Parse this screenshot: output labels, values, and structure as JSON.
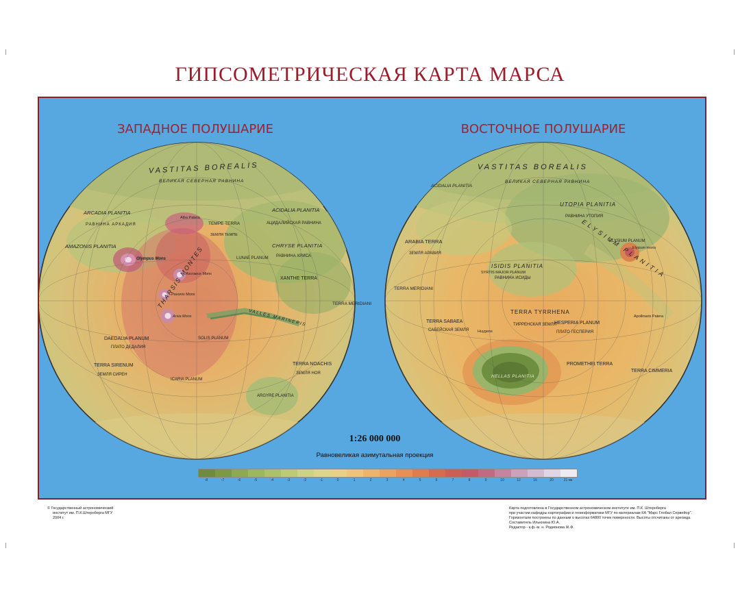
{
  "title": "ГИПСОМЕТРИЧЕСКАЯ  КАРТА  МАРСА",
  "hemispheres": {
    "west": {
      "title": "ЗАПАДНОЕ ПОЛУШАРИЕ",
      "labels": [
        {
          "text": "VASTITAS BOREALIS"
        },
        {
          "text": "ВЕЛИКАЯ СЕВЕРНАЯ РАВНИНА"
        },
        {
          "text": "ARCADIA PLANITIA"
        },
        {
          "text": "РАВНИНА АРКАДИЯ"
        },
        {
          "text": "AMAZONIS PLANITIA"
        },
        {
          "text": "ACIDALIA PLANITIA"
        },
        {
          "text": "АЦИДАЛИЙСКАЯ РАВНИНА"
        },
        {
          "text": "TEMPE TERRA"
        },
        {
          "text": "ЗЕМЛЯ ТЕМПЕ"
        },
        {
          "text": "CHRYSE PLANITIA"
        },
        {
          "text": "РАВНИНА ХРИСА"
        },
        {
          "text": "Olympus Mons"
        },
        {
          "text": "THARSIS MONTES"
        },
        {
          "text": "Ascraeus Mons"
        },
        {
          "text": "Pavonis Mons"
        },
        {
          "text": "Arsia Mons"
        },
        {
          "text": "Alba Patera"
        },
        {
          "text": "LUNAE PLANUM"
        },
        {
          "text": "XANTHE TERRA"
        },
        {
          "text": "TERRA MERIDIANI"
        },
        {
          "text": "DAEDALIA PLANUM"
        },
        {
          "text": "ПЛАТО ДЕДАЛИЯ"
        },
        {
          "text": "SOLIS PLANUM"
        },
        {
          "text": "TERRA SIRENUM"
        },
        {
          "text": "ЗЕМЛЯ СИРЕН"
        },
        {
          "text": "ICARIA PLANUM"
        },
        {
          "text": "TERRA NOACHIS"
        },
        {
          "text": "ЗЕМЛЯ НОЯ"
        },
        {
          "text": "ARGYRE PLANITIA"
        },
        {
          "text": "VALLES MARINERIS"
        }
      ]
    },
    "east": {
      "title": "ВОСТОЧНОЕ ПОЛУШАРИЕ",
      "labels": [
        {
          "text": "VASTITAS BOREALIS"
        },
        {
          "text": "ВЕЛИКАЯ СЕВЕРНАЯ РАВНИНА"
        },
        {
          "text": "UTOPIA PLANITIA"
        },
        {
          "text": "РАВНИНА УТОПИЯ"
        },
        {
          "text": "ACIDALIA PLANITIA"
        },
        {
          "text": "ARABIA TERRA"
        },
        {
          "text": "ЗЕМЛЯ АРАВИЯ"
        },
        {
          "text": "ELYSIUM PLANITIA"
        },
        {
          "text": "ELYSIUM PLANUM"
        },
        {
          "text": "Elysium mons"
        },
        {
          "text": "ISIDIS PLANITIA"
        },
        {
          "text": "РАВНИНА ИСИДЫ"
        },
        {
          "text": "SYRTIS MAJOR PLANUM"
        },
        {
          "text": "TERRA MERIDIANI"
        },
        {
          "text": "TERRA TYRRHENA"
        },
        {
          "text": "ТИРРЕНСКАЯ ЗЕМЛЯ"
        },
        {
          "text": "HESPERIA PLANUM"
        },
        {
          "text": "ПЛАТО ГЕСПЕРИЯ"
        },
        {
          "text": "TERRA SABAEA"
        },
        {
          "text": "САБЕЙСКАЯ ЗЕМЛЯ"
        },
        {
          "text": "HELLAS PLANITIA"
        },
        {
          "text": "PROMETHEI TERRA"
        },
        {
          "text": "TERRA CIMMERIA"
        },
        {
          "text": "Huygens"
        },
        {
          "text": "Apollinaris Patera"
        }
      ]
    }
  },
  "scale": "1:26 000 000",
  "projection": "Равновеликая азимутальная проекция",
  "legend": {
    "ticks": [
      "-8",
      "-7",
      "-6",
      "-5",
      "-4",
      "-3",
      "-2",
      "-1",
      "0",
      "1",
      "2",
      "3",
      "4",
      "5",
      "6",
      "7",
      "8",
      "9",
      "10",
      "12",
      "16",
      "20",
      "21 км"
    ],
    "colors": [
      "#6f8c3e",
      "#7c9a46",
      "#8daa52",
      "#9cb85e",
      "#abc26a",
      "#bccb76",
      "#cdd384",
      "#dcd68b",
      "#e8d186",
      "#efc47a",
      "#efb46c",
      "#eca261",
      "#e78f55",
      "#e07c4e",
      "#d66c4d",
      "#cc5f55",
      "#c45a68",
      "#c26a82",
      "#c684a0",
      "#cba1bd",
      "#d3bcd3",
      "#dfd5e4",
      "#ecebf2"
    ]
  },
  "footer": {
    "copyright": [
      "© Государственный астрономический",
      "институт им. П.К.Штернберга МГУ",
      "2004 г."
    ],
    "credits": [
      "Карта подготовлена в  Государственном астрономическом институте им. П.К. Штернберга",
      "при участии кафедры картографии и геоинформатики МГУ по материалам КА \"Марс Глобал Сервейор\".",
      "Горизонтали построены по данным о высотах 64800 точек поверхности. Высоты отсчитаны от ареоида.",
      "Составитель  Ильюхина Ю.А.",
      "Редактор - к.ф.-м. н. Родионова Ж.Ф."
    ]
  },
  "colors": {
    "title": "#9b1c2a",
    "frame_border": "#8c1f24",
    "ocean": "#57a7e0"
  }
}
